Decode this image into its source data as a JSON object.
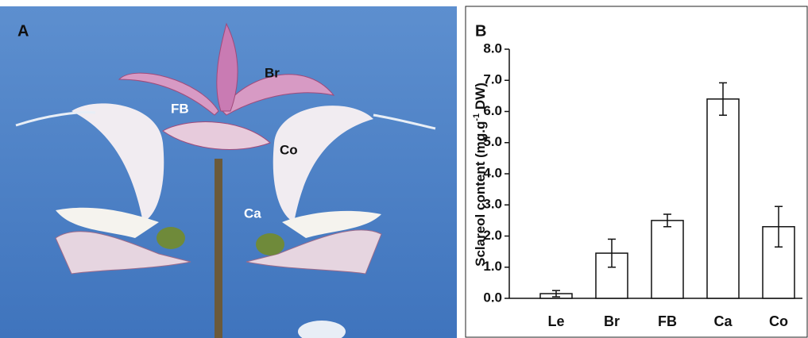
{
  "photo": {
    "label": "A",
    "annotations": [
      "Br",
      "FB",
      "Co",
      "Ca"
    ]
  },
  "chart_data": {
    "type": "bar",
    "panel_label": "B",
    "ylabel": [
      "Sclareol content (mg.g",
      "-1",
      " DW)"
    ],
    "categories": [
      "Le",
      "Br",
      "FB",
      "Ca",
      "Co"
    ],
    "values": [
      0.15,
      1.45,
      2.5,
      6.4,
      2.3
    ],
    "errors": [
      0.1,
      0.45,
      0.2,
      0.52,
      0.65
    ],
    "color": "#ffffff",
    "ylim": [
      0,
      8
    ],
    "yticks": [
      {
        "value": 0,
        "label": "0.0"
      },
      {
        "value": 1,
        "label": "1.0"
      },
      {
        "value": 2,
        "label": "2.0"
      },
      {
        "value": 3,
        "label": "3.0"
      },
      {
        "value": 4,
        "label": "4.0"
      },
      {
        "value": 5,
        "label": "5.0"
      },
      {
        "value": 6,
        "label": "6.0"
      },
      {
        "value": 7,
        "label": "7.0"
      },
      {
        "value": 8,
        "label": "8.0"
      }
    ],
    "grid": false
  }
}
